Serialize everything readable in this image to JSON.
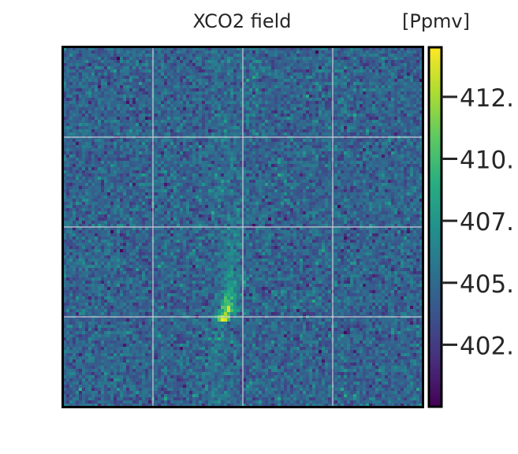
{
  "chart_data": {
    "type": "heatmap",
    "title": "XCO2 field",
    "colorbar": {
      "unit_label": "[Ppmv]",
      "colormap": "viridis",
      "range": [
        400.0,
        414.5
      ],
      "ticks": [
        {
          "value": 402.5,
          "label": "402."
        },
        {
          "value": 405.0,
          "label": "405."
        },
        {
          "value": 407.5,
          "label": "407."
        },
        {
          "value": 410.0,
          "label": "410."
        },
        {
          "value": 412.5,
          "label": "412."
        }
      ]
    },
    "grid": true,
    "grid_divisions": 4,
    "field": {
      "background_mean": 404.6,
      "noise_std": 1.2,
      "pixels_per_side": 114,
      "plume": {
        "source_row": 0.76,
        "source_col": 0.44,
        "peak_value": 414.0,
        "description_visible": false
      }
    },
    "axes": {
      "xticks_visible": false,
      "yticks_visible": false
    }
  },
  "colors": {
    "frame": "#000000",
    "grid": "#d0d0d8",
    "text": "#262626"
  }
}
